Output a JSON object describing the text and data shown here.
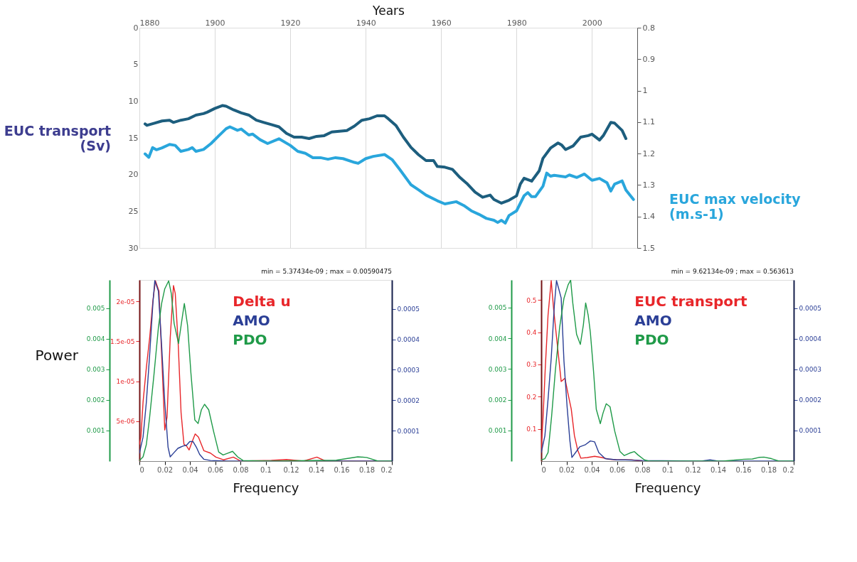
{
  "chart_data": [
    {
      "type": "line",
      "xlabel": "Years",
      "ylabel": "EUC transport\n(Sv)",
      "y2label": "EUC max velocity\n(m.s-1)",
      "xlim": [
        1880,
        2012
      ],
      "xticks": [
        1880,
        1900,
        1920,
        1940,
        1960,
        1980,
        2000
      ],
      "ylim": [
        30,
        0
      ],
      "yticks": [
        0,
        5,
        10,
        15,
        20,
        25,
        30
      ],
      "y2lim": [
        1.5,
        0.8
      ],
      "y2ticks": [
        0.8,
        0.9,
        1,
        1.1,
        1.2,
        1.3,
        1.4,
        1.5
      ],
      "grid": "x",
      "series": [
        {
          "color": "#1d5e7e",
          "axis": "y",
          "x": [
            1881.5,
            1882,
            1884,
            1886,
            1888,
            1889,
            1891,
            1893,
            1895,
            1897,
            1898,
            1900,
            1902,
            1903,
            1905,
            1907,
            1909,
            1911,
            1913,
            1915,
            1917,
            1919,
            1921,
            1923,
            1925,
            1927,
            1929,
            1931,
            1933,
            1935,
            1937,
            1939,
            1941,
            1943,
            1945,
            1946,
            1948,
            1950,
            1952,
            1954,
            1956,
            1958,
            1959,
            1961,
            1963,
            1965,
            1967,
            1969,
            1971,
            1973,
            1974,
            1976,
            1978,
            1980,
            1981,
            1982,
            1984,
            1986,
            1987,
            1989,
            1991,
            1992,
            1993,
            1995,
            1997,
            1999,
            2000,
            2002,
            2003,
            2005,
            2006,
            2008,
            2009
          ],
          "values": [
            13.1,
            13.3,
            13.0,
            12.7,
            12.6,
            12.9,
            12.6,
            12.4,
            11.9,
            11.7,
            11.5,
            11.0,
            10.6,
            10.7,
            11.2,
            11.6,
            11.9,
            12.6,
            12.9,
            13.2,
            13.5,
            14.4,
            14.9,
            14.9,
            15.1,
            14.8,
            14.7,
            14.2,
            14.1,
            14.0,
            13.4,
            12.6,
            12.4,
            12.0,
            12.0,
            12.4,
            13.3,
            14.9,
            16.3,
            17.3,
            18.1,
            18.1,
            18.9,
            19.0,
            19.3,
            20.4,
            21.3,
            22.4,
            23.1,
            22.8,
            23.4,
            23.9,
            23.5,
            22.9,
            21.3,
            20.5,
            20.9,
            19.5,
            17.8,
            16.4,
            15.7,
            16.0,
            16.6,
            16.1,
            14.9,
            14.7,
            14.5,
            15.3,
            14.7,
            12.9,
            13.0,
            14.0,
            15.1
          ]
        },
        {
          "color": "#29a6dc",
          "axis": "y2",
          "x": [
            1881.5,
            1882.5,
            1883.5,
            1884.5,
            1886,
            1888,
            1889.5,
            1891,
            1893,
            1894,
            1895,
            1897,
            1899,
            1901,
            1903,
            1904,
            1906,
            1907,
            1909,
            1910,
            1912,
            1914,
            1917,
            1920,
            1922,
            1924,
            1926,
            1928,
            1930,
            1932,
            1934,
            1937,
            1938,
            1940,
            1942,
            1945,
            1947,
            1949,
            1952,
            1954,
            1956,
            1959,
            1961,
            1964,
            1966,
            1968,
            1970,
            1972,
            1974,
            1975,
            1976,
            1977,
            1978,
            1980,
            1982,
            1983,
            1984,
            1985,
            1987,
            1988,
            1989,
            1990,
            1993,
            1994,
            1996,
            1998,
            2000,
            2002,
            2004,
            2005,
            2006,
            2008,
            2009,
            2011
          ],
          "values": [
            1.201,
            1.212,
            1.181,
            1.188,
            1.182,
            1.171,
            1.174,
            1.193,
            1.187,
            1.181,
            1.193,
            1.187,
            1.168,
            1.144,
            1.121,
            1.115,
            1.126,
            1.122,
            1.141,
            1.138,
            1.156,
            1.168,
            1.153,
            1.174,
            1.193,
            1.199,
            1.213,
            1.213,
            1.218,
            1.213,
            1.216,
            1.228,
            1.231,
            1.216,
            1.209,
            1.203,
            1.219,
            1.25,
            1.299,
            1.315,
            1.332,
            1.35,
            1.36,
            1.353,
            1.365,
            1.382,
            1.393,
            1.406,
            1.412,
            1.419,
            1.412,
            1.421,
            1.397,
            1.382,
            1.334,
            1.324,
            1.337,
            1.337,
            1.304,
            1.262,
            1.272,
            1.269,
            1.274,
            1.268,
            1.276,
            1.265,
            1.285,
            1.279,
            1.293,
            1.319,
            1.297,
            1.287,
            1.316,
            1.346
          ]
        }
      ]
    },
    {
      "type": "line",
      "xlabel": "Frequency",
      "ylabel": "Power",
      "xlim": [
        0,
        0.2
      ],
      "xticks": [
        0,
        0.02,
        0.04,
        0.06,
        0.08,
        0.1,
        0.12,
        0.14,
        0.16,
        0.18,
        0.2
      ],
      "ylim": [
        0,
        0.00593
      ],
      "yticks": [
        0.001,
        0.002,
        0.003,
        0.004,
        0.005
      ],
      "y2lim": [
        0,
        2.27e-05
      ],
      "y2ticks": [
        5e-06,
        1e-05,
        1.5e-05,
        2e-05
      ],
      "y3lim": [
        0,
        0.000595
      ],
      "y3ticks": [
        0.0001,
        0.0002,
        0.0003,
        0.0004,
        0.0005
      ],
      "legend": "top",
      "annotations": [
        "min = 5.37434e-09 ; max = 0.00590475"
      ],
      "series": [
        {
          "name": "Delta u",
          "color": "#e8262a",
          "axis": "y2",
          "x": [
            0,
            0.0012,
            0.0029,
            0.0055,
            0.0081,
            0.0107,
            0.0127,
            0.0155,
            0.0179,
            0.0201,
            0.0219,
            0.0244,
            0.027,
            0.0284,
            0.0308,
            0.033,
            0.0353,
            0.0373,
            0.0394,
            0.0417,
            0.0442,
            0.0468,
            0.0511,
            0.0563,
            0.0606,
            0.0666,
            0.0744,
            0.0804,
            0.1045,
            0.1165,
            0.13,
            0.1406,
            0.1475,
            0.194,
            0.2
          ],
          "values": [
            2.1e-06,
            3e-06,
            7.4e-06,
            1.17e-05,
            1.54e-05,
            2.01e-05,
            2.26e-05,
            2.13e-05,
            1.23e-05,
            3.9e-06,
            5.5e-06,
            1.54e-05,
            2.2e-05,
            2.1e-05,
            1.45e-05,
            6.1e-06,
            2.1e-06,
            1.9e-06,
            1.4e-06,
            2.4e-06,
            3.4e-06,
            3e-06,
            1.3e-06,
            1e-06,
            5e-07,
            1.6e-07,
            5e-07,
            0,
            1e-07,
            2e-07,
            0,
            5e-07,
            0,
            0,
            0
          ]
        },
        {
          "name": "AMO",
          "color": "#2b3f96",
          "axis": "y3",
          "x": [
            0,
            0.0029,
            0.0055,
            0.0081,
            0.0107,
            0.0122,
            0.015,
            0.0176,
            0.0201,
            0.0227,
            0.0244,
            0.027,
            0.0305,
            0.0348,
            0.0373,
            0.0399,
            0.0425,
            0.0451,
            0.0477,
            0.0511,
            0.0563,
            0.07,
            0.2
          ],
          "values": [
            2.6e-05,
            7.9e-05,
            0.000193,
            0.000347,
            0.000518,
            0.000593,
            0.000559,
            0.00038,
            0.000193,
            4.6e-05,
            1.4e-05,
            2.6e-05,
            4.2e-05,
            5e-05,
            5.2e-05,
            6.4e-05,
            6.4e-05,
            4.6e-05,
            2.2e-05,
            6e-06,
            2e-06,
            0,
            0
          ]
        },
        {
          "name": "PDO",
          "color": "#1f9a48",
          "axis": "y",
          "x": [
            0,
            0.0029,
            0.0055,
            0.0081,
            0.0115,
            0.015,
            0.0176,
            0.0201,
            0.0232,
            0.0253,
            0.0275,
            0.031,
            0.033,
            0.0356,
            0.0382,
            0.0408,
            0.0439,
            0.0465,
            0.0491,
            0.0516,
            0.0549,
            0.0589,
            0.0628,
            0.0663,
            0.07,
            0.0738,
            0.0778,
            0.0821,
            0.1045,
            0.156,
            0.173,
            0.18,
            0.189,
            0.2
          ],
          "values": [
            2e-05,
            0.00014,
            0.00054,
            0.00143,
            0.00281,
            0.00435,
            0.00516,
            0.00564,
            0.0059,
            0.00548,
            0.00451,
            0.00385,
            0.00443,
            0.00516,
            0.00443,
            0.00289,
            0.00135,
            0.00123,
            0.00168,
            0.00186,
            0.00168,
            0.00095,
            0.0003,
            0.0002,
            0.00026,
            0.00032,
            0.00014,
            2e-05,
            0,
            3e-05,
            0.00014,
            0.00012,
            0,
            0
          ]
        }
      ]
    },
    {
      "type": "line",
      "xlabel": "Frequency",
      "xlim": [
        0,
        0.2
      ],
      "xticks": [
        0,
        0.02,
        0.04,
        0.06,
        0.08,
        0.1,
        0.12,
        0.14,
        0.16,
        0.18,
        0.2
      ],
      "ylim": [
        0,
        0.0059
      ],
      "yticks": [
        0.001,
        0.002,
        0.003,
        0.004,
        0.005
      ],
      "y2lim": [
        0,
        0.562
      ],
      "y2ticks": [
        0.1,
        0.2,
        0.3,
        0.4,
        0.5
      ],
      "y3lim": [
        0,
        0.000593
      ],
      "y3ticks": [
        0.0001,
        0.0002,
        0.0003,
        0.0004,
        0.0005
      ],
      "legend": "top",
      "annotations": [
        "min = 9.62134e-09 ; max = 0.563613"
      ],
      "series": [
        {
          "name": "EUC transport",
          "color": "#e8262a",
          "axis": "y2",
          "x": [
            0,
            0.0015,
            0.0032,
            0.0054,
            0.0079,
            0.0099,
            0.0129,
            0.0158,
            0.0188,
            0.021,
            0.0238,
            0.0263,
            0.0289,
            0.0314,
            0.0364,
            0.0423,
            0.0482,
            0.0532,
            0.0599,
            0.0716,
            0.08
          ],
          "values": [
            0.034,
            0.139,
            0.288,
            0.453,
            0.56,
            0.468,
            0.356,
            0.247,
            0.257,
            0.213,
            0.161,
            0.079,
            0.034,
            0.009,
            0.011,
            0.015,
            0.011,
            0.006,
            0.004,
            0.004,
            0
          ]
        },
        {
          "name": "AMO",
          "color": "#2b3f96",
          "axis": "y3",
          "x": [
            0,
            0.0029,
            0.0054,
            0.0079,
            0.0104,
            0.0121,
            0.0138,
            0.0158,
            0.018,
            0.0205,
            0.0227,
            0.0243,
            0.0272,
            0.0305,
            0.0347,
            0.0389,
            0.0423,
            0.0456,
            0.0507,
            0.0599,
            0.0666,
            0.08,
            0.127,
            0.1337,
            0.14,
            0.2
          ],
          "values": [
            2.8e-05,
            8.3e-05,
            0.000202,
            0.000336,
            0.00051,
            0.000591,
            0.000565,
            0.000534,
            0.000328,
            0.000178,
            6.7e-05,
            1.2e-05,
            2.8e-05,
            4.7e-05,
            5.3e-05,
            6.6e-05,
            6.3e-05,
            2.8e-05,
            8e-06,
            4e-06,
            4e-06,
            2e-06,
            0,
            4e-06,
            0,
            0
          ]
        },
        {
          "name": "PDO",
          "color": "#1f9a48",
          "axis": "y",
          "x": [
            0,
            0.0029,
            0.0054,
            0.0082,
            0.0112,
            0.0146,
            0.018,
            0.0213,
            0.0233,
            0.025,
            0.028,
            0.031,
            0.0334,
            0.0352,
            0.0372,
            0.0389,
            0.0414,
            0.0436,
            0.0468,
            0.049,
            0.0515,
            0.0545,
            0.0582,
            0.0624,
            0.0658,
            0.07,
            0.0737,
            0.0767,
            0.0817,
            0.0851,
            0.1438,
            0.1606,
            0.1673,
            0.1723,
            0.1765,
            0.1824,
            0.1883,
            0.2
          ],
          "values": [
            4e-05,
            8e-05,
            0.00028,
            0.00145,
            0.00295,
            0.00436,
            0.0053,
            0.00574,
            0.00589,
            0.00515,
            0.00413,
            0.0038,
            0.00444,
            0.00515,
            0.00475,
            0.0042,
            0.00295,
            0.00169,
            0.00122,
            0.00157,
            0.00187,
            0.00177,
            0.00098,
            0.00031,
            0.00018,
            0.00026,
            0.00031,
            0.0002,
            4e-05,
            0,
            0,
            6e-05,
            7e-05,
            0.00012,
            0.00013,
            8e-05,
            0,
            0
          ]
        }
      ]
    }
  ]
}
